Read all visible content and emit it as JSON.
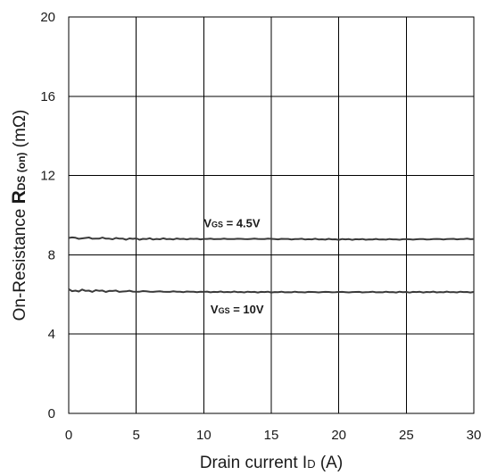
{
  "chart_data": {
    "type": "line",
    "title": "",
    "xlabel": {
      "main": "Drain current I",
      "sub": "D",
      "unit": " (A)"
    },
    "ylabel": {
      "prefix": "On-Resistance ",
      "symbol": "R",
      "sub": "DS (on)",
      "unit": " (mΩ)"
    },
    "xlim": [
      0,
      30
    ],
    "ylim": [
      0,
      20
    ],
    "xticks": [
      0,
      5,
      10,
      15,
      20,
      25,
      30
    ],
    "yticks": [
      0,
      4,
      8,
      12,
      16,
      20
    ],
    "grid": true,
    "x": [
      0,
      5,
      10,
      15,
      20,
      25,
      30
    ],
    "series": [
      {
        "annotation": {
          "main": "V",
          "sub": "GS",
          "value": " = 4.5V"
        },
        "values": [
          8.85,
          8.8,
          8.8,
          8.8,
          8.78,
          8.78,
          8.8
        ]
      },
      {
        "annotation": {
          "main": "V",
          "sub": "GS",
          "value": " = 10V"
        },
        "values": [
          6.2,
          6.15,
          6.13,
          6.12,
          6.12,
          6.12,
          6.12
        ]
      }
    ]
  }
}
